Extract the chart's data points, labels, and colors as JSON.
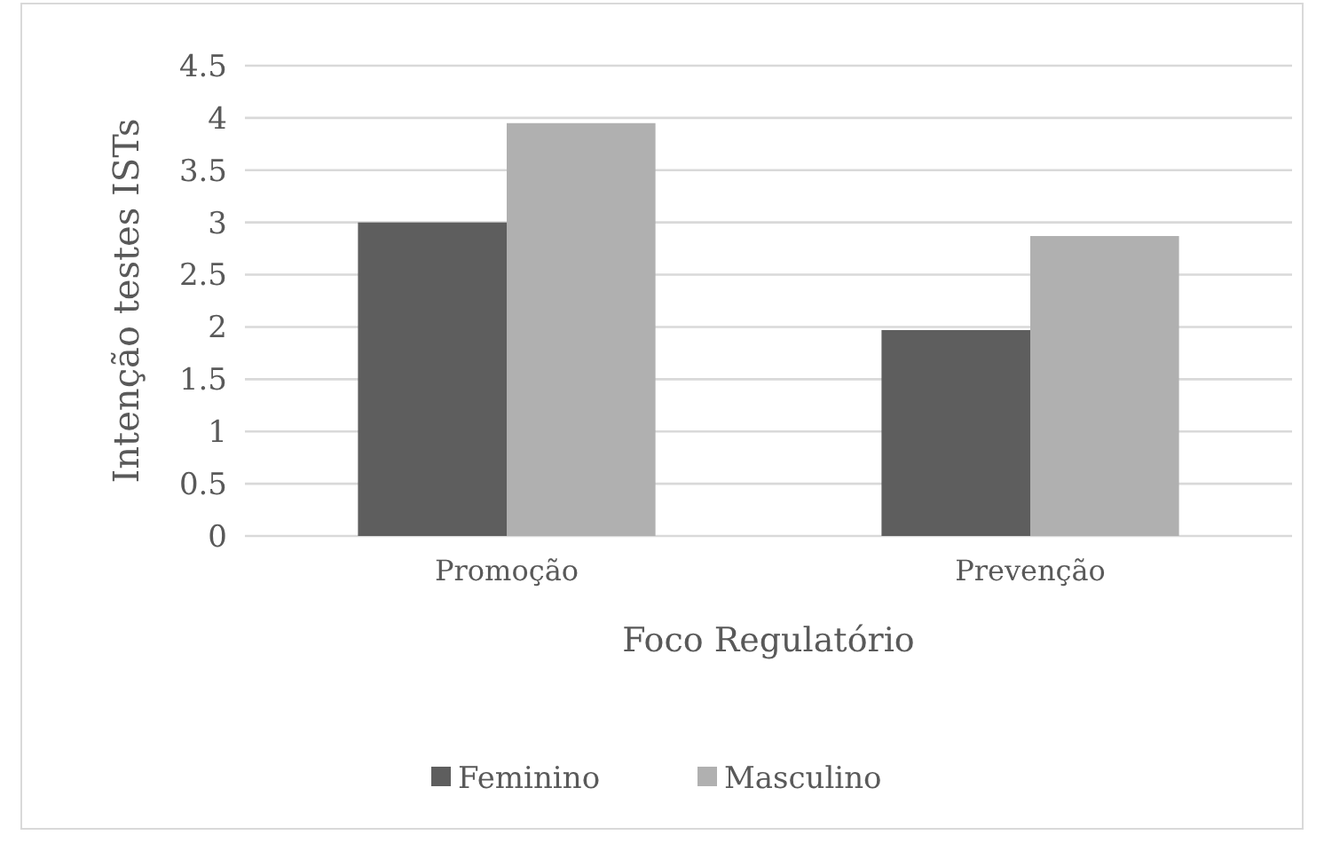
{
  "chart_data": {
    "type": "bar",
    "xlabel": "Foco Regulatório",
    "ylabel": "Intenção testes ISTs",
    "categories": [
      "Promoção",
      "Prevenção"
    ],
    "series": [
      {
        "name": "Feminino",
        "color": "#5e5e5e",
        "values": [
          3.0,
          1.97
        ]
      },
      {
        "name": "Masculino",
        "color": "#b0b0b0",
        "values": [
          3.95,
          2.87
        ]
      }
    ],
    "ylim": [
      0,
      4.5
    ],
    "yticks": [
      0,
      0.5,
      1,
      1.5,
      2,
      2.5,
      3,
      3.5,
      4,
      4.5
    ],
    "grid": "y",
    "legend": "bottom"
  }
}
